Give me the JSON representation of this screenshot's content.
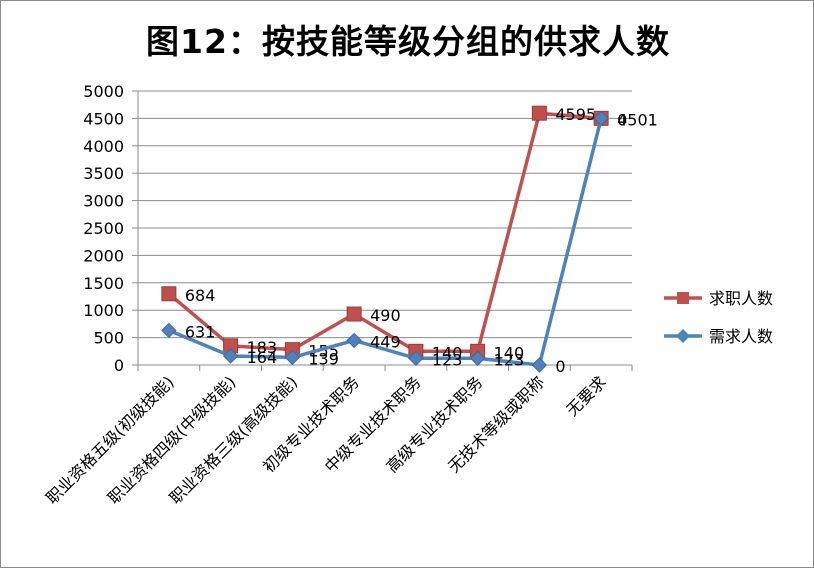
{
  "chart_data": {
    "type": "line",
    "title": "图12：按技能等级分组的供求人数",
    "categories": [
      "职业资格五级(初级技能)",
      "职业资格四级(中级技能)",
      "职业资格三级(高级技能)",
      "初级专业技术职务",
      "中级专业技术职务",
      "高级专业技术职务",
      "无技术等级或职称",
      "无要求"
    ],
    "series": [
      {
        "name": "求职人数",
        "color": "#c0504d",
        "marker": "square",
        "values": [
          1300,
          350,
          280,
          930,
          250,
          250,
          4595,
          4501
        ],
        "labels": [
          "684",
          "183",
          "155",
          "490",
          "140",
          "140",
          "4595",
          "0"
        ]
      },
      {
        "name": "需求人数",
        "color": "#4f81bd",
        "marker": "diamond",
        "values": [
          631,
          164,
          139,
          449,
          123,
          123,
          0,
          4501
        ],
        "labels": [
          "631",
          "164",
          "139",
          "449",
          "123",
          "123",
          "0",
          "4501"
        ]
      }
    ],
    "ylim": [
      0,
      5000
    ],
    "yticks": [
      0,
      500,
      1000,
      1500,
      2000,
      2500,
      3000,
      3500,
      4000,
      4500,
      5000
    ],
    "grid": true,
    "legend": "right"
  }
}
